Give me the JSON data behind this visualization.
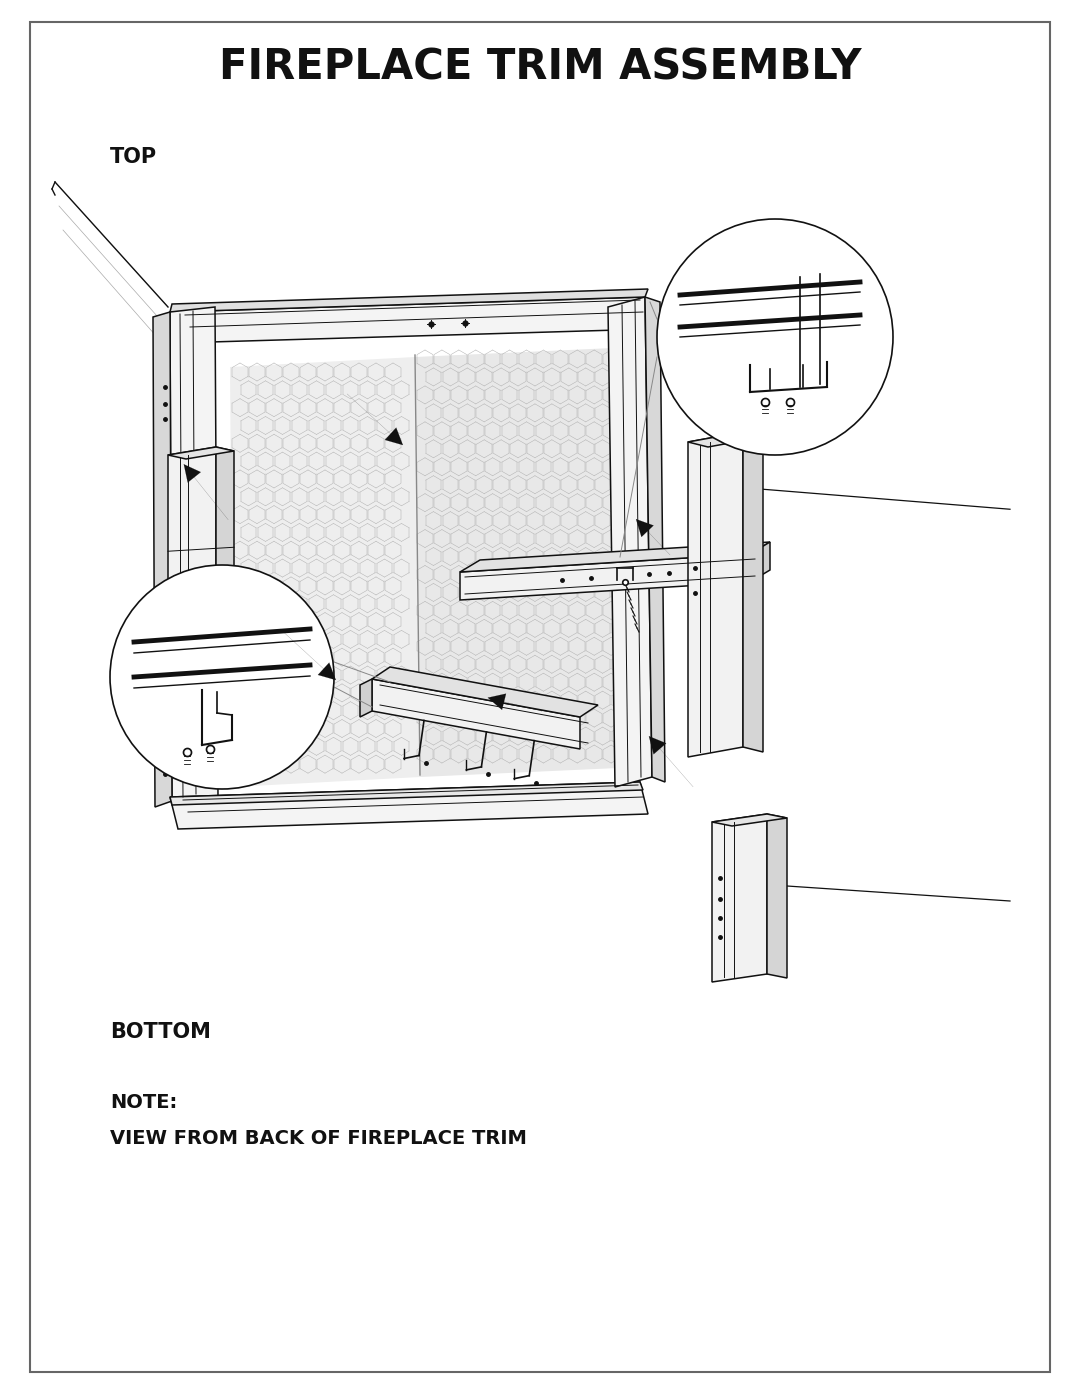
{
  "title": "FIREPLACE TRIM ASSEMBLY",
  "label_top": "TOP",
  "label_bottom": "BOTTOM",
  "note_line1": "NOTE:",
  "note_line2": "VIEW FROM BACK OF FIREPLACE TRIM",
  "bg_color": "#ffffff",
  "border_color": "#666666",
  "line_color": "#111111",
  "title_fontsize": 30,
  "label_fontsize": 15,
  "note_fontsize": 14
}
